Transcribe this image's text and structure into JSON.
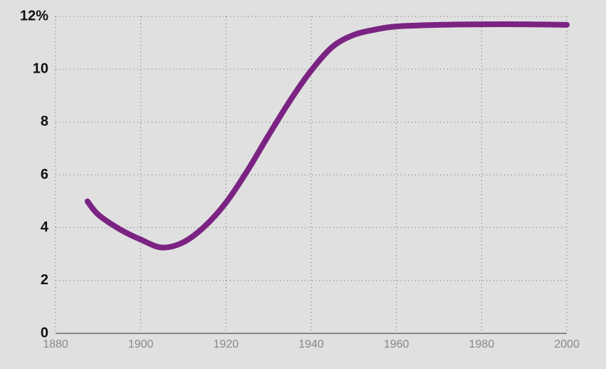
{
  "chart_data": {
    "type": "line",
    "x": [
      1887.5,
      1890,
      1895,
      1900,
      1905,
      1910,
      1915,
      1920,
      1925,
      1930,
      1935,
      1940,
      1945,
      1950,
      1955,
      1960,
      1970,
      1980,
      1990,
      2000
    ],
    "series": [
      {
        "color": "#7b2383",
        "values": [
          5.0,
          4.5,
          3.95,
          3.55,
          3.25,
          3.45,
          4.05,
          4.95,
          6.15,
          7.5,
          8.8,
          9.95,
          10.85,
          11.3,
          11.5,
          11.62,
          11.68,
          11.7,
          11.7,
          11.68
        ]
      }
    ],
    "xlim": [
      1880,
      2000
    ],
    "xticks": [
      1880,
      1900,
      1920,
      1940,
      1960,
      1980,
      2000
    ],
    "ylim": [
      0,
      12
    ],
    "yticks": [
      0,
      2,
      4,
      6,
      8,
      10,
      {
        "value": 12,
        "label": "12%"
      }
    ],
    "grid": true
  }
}
